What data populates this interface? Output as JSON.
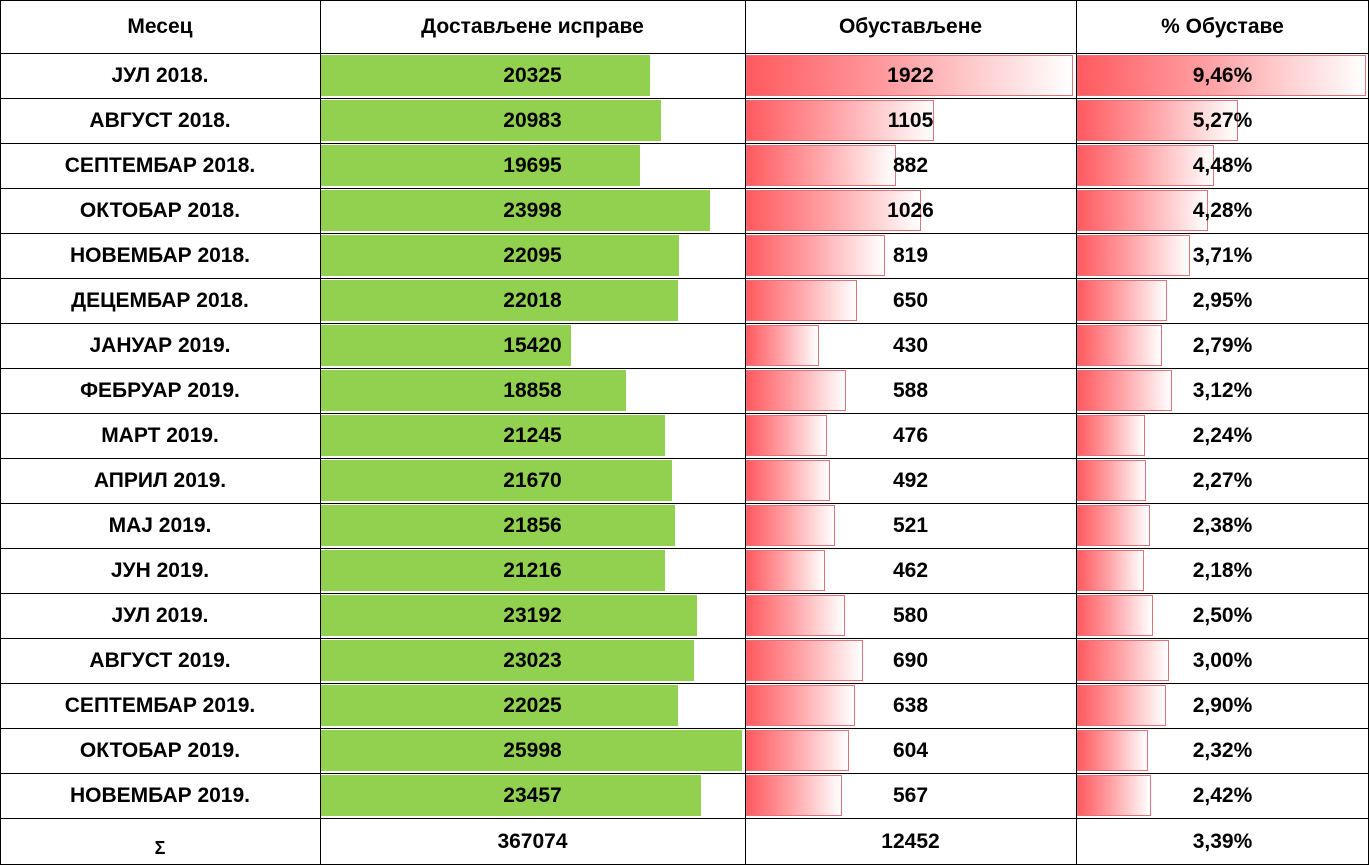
{
  "headers": [
    "Месец",
    "Достављене исправе",
    "Обустављене",
    "% Обуставе"
  ],
  "chart_data": {
    "type": "table",
    "columns": [
      "Месец",
      "Достављене исправе",
      "Обустављене",
      "% Обуставе"
    ],
    "rows": [
      {
        "month": "ЈУЛ 2018.",
        "delivered": 20325,
        "stopped": 1922,
        "percent": "9,46%",
        "percent_value": 9.46
      },
      {
        "month": "АВГУСТ 2018.",
        "delivered": 20983,
        "stopped": 1105,
        "percent": "5,27%",
        "percent_value": 5.27
      },
      {
        "month": "СЕПТЕМБАР 2018.",
        "delivered": 19695,
        "stopped": 882,
        "percent": "4,48%",
        "percent_value": 4.48
      },
      {
        "month": "ОКТОБАР 2018.",
        "delivered": 23998,
        "stopped": 1026,
        "percent": "4,28%",
        "percent_value": 4.28
      },
      {
        "month": "НОВЕМБАР 2018.",
        "delivered": 22095,
        "stopped": 819,
        "percent": "3,71%",
        "percent_value": 3.71
      },
      {
        "month": "ДЕЦЕМБАР 2018.",
        "delivered": 22018,
        "stopped": 650,
        "percent": "2,95%",
        "percent_value": 2.95
      },
      {
        "month": "ЈАНУАР 2019.",
        "delivered": 15420,
        "stopped": 430,
        "percent": "2,79%",
        "percent_value": 2.79
      },
      {
        "month": "ФЕБРУАР 2019.",
        "delivered": 18858,
        "stopped": 588,
        "percent": "3,12%",
        "percent_value": 3.12
      },
      {
        "month": "МАРТ 2019.",
        "delivered": 21245,
        "stopped": 476,
        "percent": "2,24%",
        "percent_value": 2.24
      },
      {
        "month": "АПРИЛ 2019.",
        "delivered": 21670,
        "stopped": 492,
        "percent": "2,27%",
        "percent_value": 2.27
      },
      {
        "month": "МАЈ 2019.",
        "delivered": 21856,
        "stopped": 521,
        "percent": "2,38%",
        "percent_value": 2.38
      },
      {
        "month": "ЈУН 2019.",
        "delivered": 21216,
        "stopped": 462,
        "percent": "2,18%",
        "percent_value": 2.18
      },
      {
        "month": "ЈУЛ 2019.",
        "delivered": 23192,
        "stopped": 580,
        "percent": "2,50%",
        "percent_value": 2.5
      },
      {
        "month": "АВГУСТ 2019.",
        "delivered": 23023,
        "stopped": 690,
        "percent": "3,00%",
        "percent_value": 3.0
      },
      {
        "month": "СЕПТЕМБАР 2019.",
        "delivered": 22025,
        "stopped": 638,
        "percent": "2,90%",
        "percent_value": 2.9
      },
      {
        "month": "ОКТОБАР 2019.",
        "delivered": 25998,
        "stopped": 604,
        "percent": "2,32%",
        "percent_value": 2.32
      },
      {
        "month": "НОВЕМБАР 2019.",
        "delivered": 23457,
        "stopped": 567,
        "percent": "2,42%",
        "percent_value": 2.42
      }
    ],
    "totals": {
      "label": "Σ",
      "delivered": "367074",
      "stopped": "12452",
      "percent": "3,39%"
    },
    "bar_colors": {
      "delivered": "#92d050",
      "stopped": "#ff5a5f",
      "percent": "#ff5a5f"
    }
  }
}
